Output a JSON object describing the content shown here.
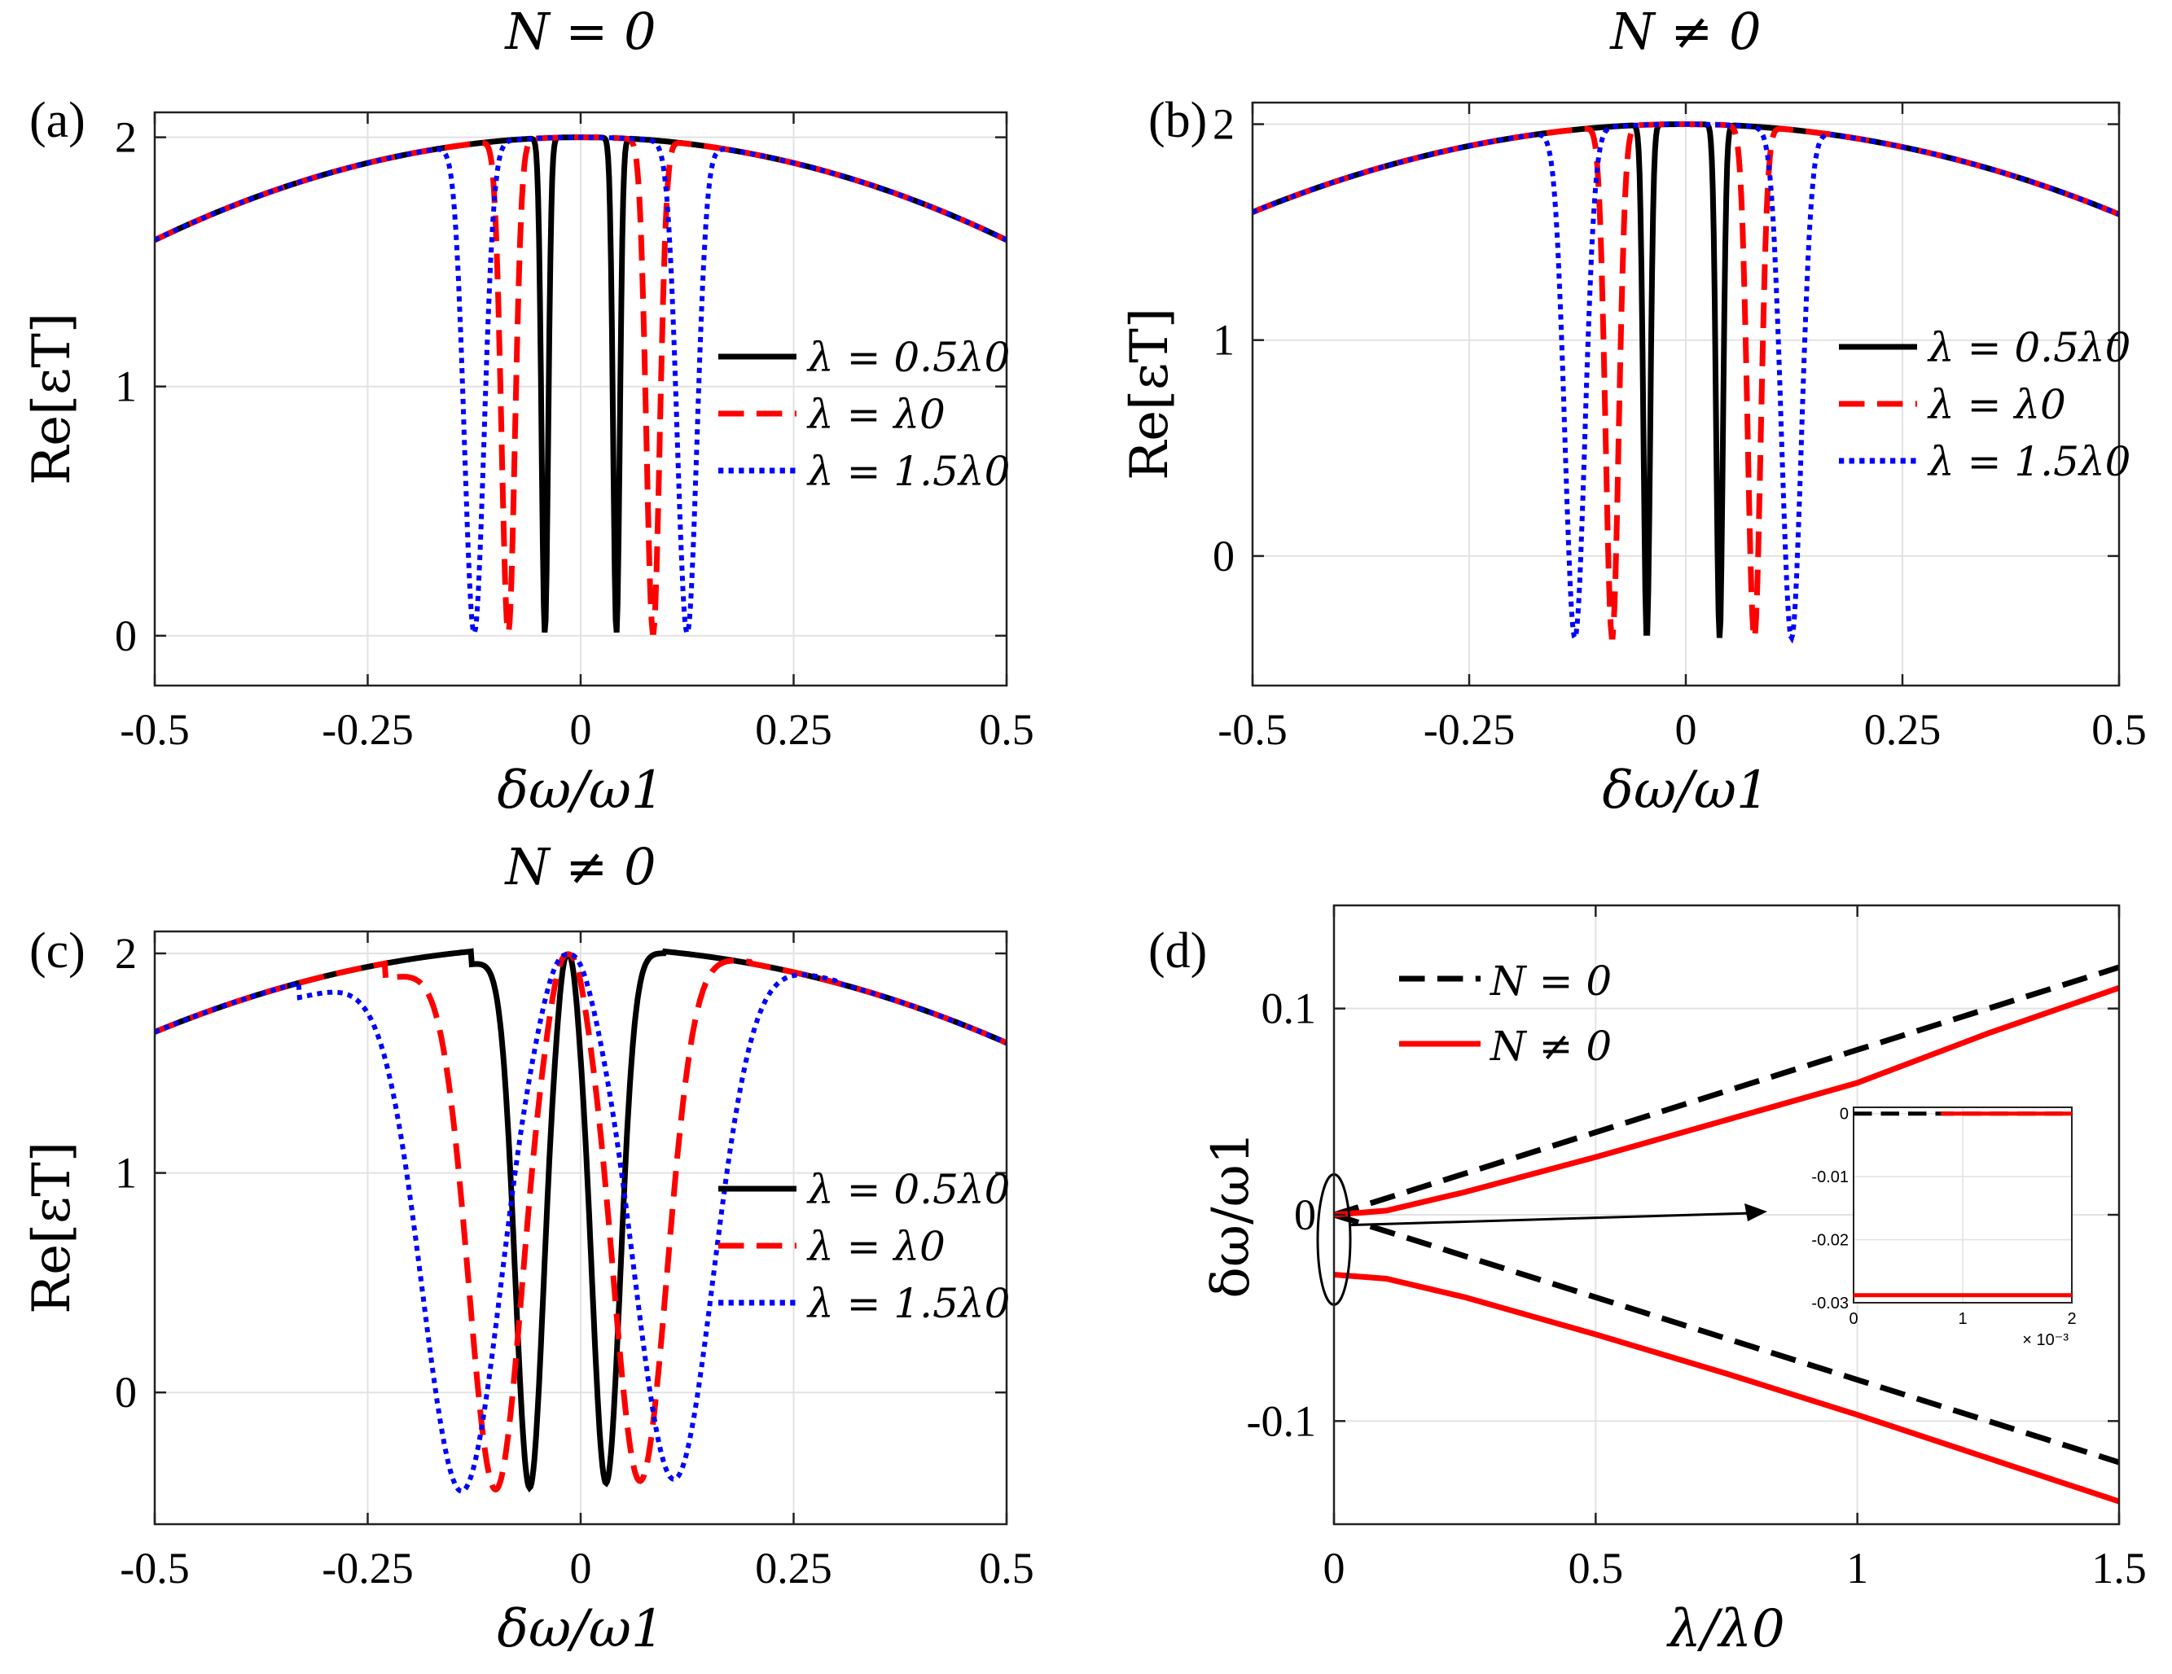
{
  "chart_data": [
    {
      "panel": "(a)",
      "type": "line",
      "title": "N = 0",
      "xlabel": "δω/ω1",
      "ylabel": "Re[εT]",
      "xlim": [
        -0.5,
        0.5
      ],
      "ylim": [
        -0.2,
        2.1
      ],
      "xticks": [
        -0.5,
        -0.25,
        0,
        0.25,
        0.5
      ],
      "xtick_labels": [
        "-0.5",
        "-0.25",
        "0",
        "0.25",
        "0.5"
      ],
      "yticks": [
        0,
        1,
        2
      ],
      "ytick_labels": [
        "0",
        "1",
        "2"
      ],
      "grid": true,
      "legend_position": "right",
      "series": [
        {
          "name": "λ = 0.5λ0",
          "color": "#000000",
          "style": "solid",
          "dip_center": 0.0,
          "dip_half_width": 0.042,
          "dip_min": 0.01,
          "peak": 2.0
        },
        {
          "name": "λ = λ0",
          "color": "#ff0000",
          "style": "dashed",
          "dip_center": 0.0,
          "dip_half_width": 0.085,
          "dip_min": 0.01,
          "peak": 2.0
        },
        {
          "name": "λ = 1.5λ0",
          "color": "#0000ff",
          "style": "dotted",
          "dip_center": 0.0,
          "dip_half_width": 0.125,
          "dip_min": 0.01,
          "peak": 2.0
        }
      ]
    },
    {
      "panel": "(b)",
      "type": "line",
      "title": "N ≠ 0",
      "xlabel": "δω/ω1",
      "ylabel": "Re[εT]",
      "xlim": [
        -0.5,
        0.5
      ],
      "ylim": [
        -0.6,
        2.1
      ],
      "xticks": [
        -0.5,
        -0.25,
        0,
        0.25,
        0.5
      ],
      "xtick_labels": [
        "-0.5",
        "-0.25",
        "0",
        "0.25",
        "0.5"
      ],
      "yticks": [
        0,
        1,
        2
      ],
      "ytick_labels": [
        "0",
        "1",
        "2"
      ],
      "grid": true,
      "legend_position": "right",
      "series": [
        {
          "name": "λ = 0.5λ0",
          "color": "#000000",
          "style": "solid",
          "dip_center": -0.003,
          "dip_half_width": 0.042,
          "dip_min": -0.38,
          "peak": 2.0
        },
        {
          "name": "λ = λ0",
          "color": "#ff0000",
          "style": "dashed",
          "dip_center": -0.003,
          "dip_half_width": 0.082,
          "dip_min": -0.38,
          "peak": 2.0
        },
        {
          "name": "λ = 1.5λ0",
          "color": "#0000ff",
          "style": "dotted",
          "dip_center": -0.003,
          "dip_half_width": 0.125,
          "dip_min": -0.38,
          "peak": 2.0
        }
      ]
    },
    {
      "panel": "(c)",
      "type": "line",
      "title": "N ≠ 0",
      "xlabel": "δω/ω1",
      "ylabel": "Re[εT]",
      "xlim": [
        -0.5,
        0.5
      ],
      "ylim": [
        -0.6,
        2.1
      ],
      "xticks": [
        -0.5,
        -0.25,
        0,
        0.25,
        0.5
      ],
      "xtick_labels": [
        "-0.5",
        "-0.25",
        "0",
        "0.25",
        "0.5"
      ],
      "yticks": [
        0,
        1,
        2
      ],
      "ytick_labels": [
        "0",
        "1",
        "2"
      ],
      "grid": true,
      "legend_position": "right",
      "series": [
        {
          "name": "λ = 0.5λ0",
          "color": "#000000",
          "style": "solid",
          "dip_center": -0.015,
          "dip_half_width": 0.045,
          "dip_min": -0.42,
          "peak": 2.0
        },
        {
          "name": "λ = λ0",
          "color": "#ff0000",
          "style": "dashed",
          "dip_center": -0.015,
          "dip_half_width": 0.085,
          "dip_min": -0.42,
          "peak": 2.0
        },
        {
          "name": "λ = 1.5λ0",
          "color": "#0000ff",
          "style": "dotted",
          "dip_center": -0.015,
          "dip_half_width": 0.125,
          "dip_min": -0.42,
          "peak": 2.0
        }
      ]
    },
    {
      "panel": "(d)",
      "type": "line",
      "title": "",
      "xlabel": "λ/λ0",
      "ylabel": "δω/ω1",
      "xlim": [
        0,
        1.5
      ],
      "ylim": [
        -0.15,
        0.15
      ],
      "xticks": [
        0,
        0.5,
        1,
        1.5
      ],
      "xtick_labels": [
        "0",
        "0.5",
        "1",
        "1.5"
      ],
      "yticks": [
        -0.1,
        0,
        0.1
      ],
      "ytick_labels": [
        "-0.1",
        "0",
        "0.1"
      ],
      "grid": true,
      "legend_position": "top-left",
      "series": [
        {
          "name": "N = 0",
          "color": "#000000",
          "style": "dashed",
          "x": [
            0,
            1.5
          ],
          "upper": [
            0,
            0.12
          ],
          "lower": [
            0,
            -0.12
          ]
        },
        {
          "name": "N ≠ 0",
          "color": "#ff0000",
          "style": "solid",
          "x": [
            0,
            0.1,
            0.25,
            0.5,
            0.75,
            1.0,
            1.25,
            1.5
          ],
          "upper": [
            0,
            0.002,
            0.011,
            0.028,
            0.046,
            0.064,
            0.088,
            0.11
          ],
          "lower": [
            -0.029,
            -0.031,
            -0.04,
            -0.058,
            -0.077,
            -0.097,
            -0.118,
            -0.139
          ]
        }
      ],
      "inset": {
        "xlim": [
          0,
          0.002
        ],
        "ylim": [
          -0.03,
          0.001
        ],
        "xticks": [
          0,
          1,
          2
        ],
        "xtick_labels": [
          "0",
          "1",
          "2"
        ],
        "yticks": [
          0,
          -0.01,
          -0.02,
          -0.03
        ],
        "ytick_labels": [
          "0",
          "-0.01",
          "-0.02",
          "-0.03"
        ],
        "x_exponent_label": "× 10⁻³",
        "series": [
          {
            "name": "N = 0",
            "color": "#000000",
            "style": "dashed",
            "y": 0
          },
          {
            "name": "N ≠ 0 upper",
            "color": "#ff0000",
            "style": "solid",
            "y": 0,
            "x_start": 0.0008
          },
          {
            "name": "N ≠ 0 lower",
            "color": "#ff0000",
            "style": "solid",
            "y": -0.0288
          }
        ]
      }
    }
  ]
}
